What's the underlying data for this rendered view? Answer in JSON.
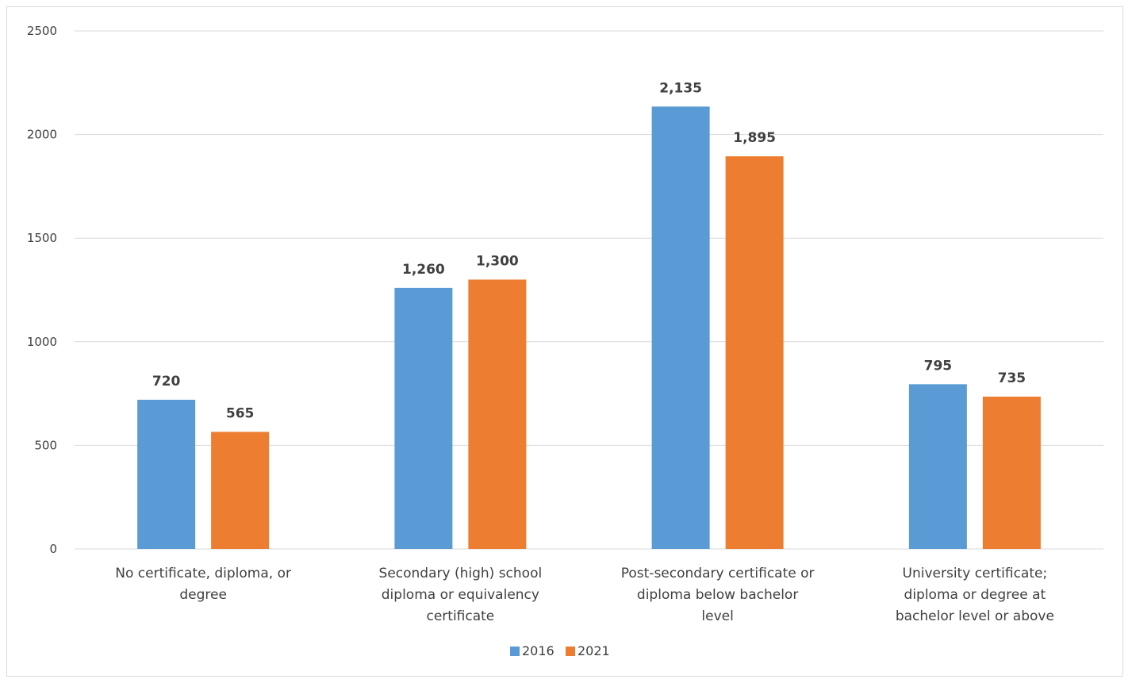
{
  "chart_data": {
    "type": "bar",
    "title": "",
    "xlabel": "",
    "ylabel": "",
    "categories": [
      [
        "No certificate, diploma, or",
        "degree"
      ],
      [
        "Secondary (high) school",
        "diploma or equivalency",
        "certificate"
      ],
      [
        "Post-secondary certificate or",
        "diploma below bachelor",
        "level"
      ],
      [
        "University certificate;",
        "diploma or degree at",
        "bachelor level or above"
      ]
    ],
    "series": [
      {
        "name": "2016",
        "color": "#5B9BD5",
        "values": [
          720,
          1260,
          2135,
          795
        ],
        "labels": [
          "720",
          "1,260",
          "2,135",
          "795"
        ]
      },
      {
        "name": "2021",
        "color": "#ED7D31",
        "values": [
          565,
          1300,
          1895,
          735
        ],
        "labels": [
          "565",
          "1,300",
          "1,895",
          "735"
        ]
      }
    ],
    "ylim": [
      0,
      2500
    ],
    "yticks": [
      "0",
      "500",
      "1000",
      "1500",
      "2000",
      "2500"
    ],
    "grid": true,
    "legend_position": "bottom"
  }
}
